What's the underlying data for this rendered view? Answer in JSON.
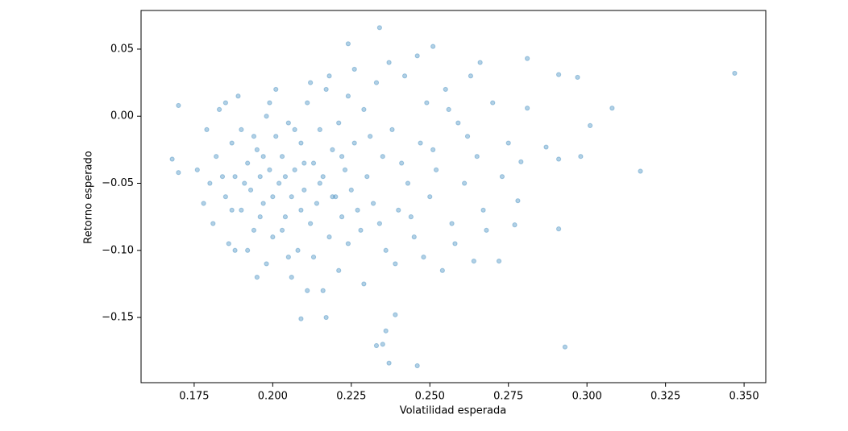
{
  "chart_data": {
    "type": "scatter",
    "x_label": "Volatilidad esperada",
    "y_label": "Retorno esperado",
    "color": "#1f77b4",
    "opacity": 0.35,
    "x": [
      0.347,
      0.317,
      0.308,
      0.301,
      0.298,
      0.297,
      0.293,
      0.291,
      0.291,
      0.291,
      0.287,
      0.281,
      0.281,
      0.279,
      0.278,
      0.277,
      0.275,
      0.234,
      0.246,
      0.237,
      0.233,
      0.235,
      0.236,
      0.239,
      0.168,
      0.17,
      0.17,
      0.209,
      0.217,
      0.224,
      0.251,
      0.272,
      0.264,
      0.18,
      0.182,
      0.185,
      0.187,
      0.188,
      0.19,
      0.19,
      0.192,
      0.193,
      0.194,
      0.195,
      0.196,
      0.197,
      0.198,
      0.199,
      0.2,
      0.201,
      0.202,
      0.203,
      0.204,
      0.205,
      0.206,
      0.207,
      0.208,
      0.209,
      0.21,
      0.211,
      0.212,
      0.213,
      0.214,
      0.215,
      0.216,
      0.217,
      0.218,
      0.219,
      0.22,
      0.221,
      0.222,
      0.223,
      0.224,
      0.225,
      0.226,
      0.228,
      0.229,
      0.23,
      0.232,
      0.233,
      0.235,
      0.236,
      0.238,
      0.24,
      0.242,
      0.243,
      0.245,
      0.247,
      0.249,
      0.25,
      0.252,
      0.255,
      0.257,
      0.259,
      0.261,
      0.263,
      0.265,
      0.267,
      0.27,
      0.273,
      0.176,
      0.178,
      0.179,
      0.181,
      0.183,
      0.184,
      0.186,
      0.187,
      0.189,
      0.191,
      0.192,
      0.194,
      0.196,
      0.197,
      0.198,
      0.2,
      0.201,
      0.203,
      0.204,
      0.206,
      0.207,
      0.209,
      0.21,
      0.212,
      0.213,
      0.215,
      0.216,
      0.218,
      0.219,
      0.221,
      0.222,
      0.224,
      0.226,
      0.227,
      0.229,
      0.231,
      0.234,
      0.237,
      0.239,
      0.241,
      0.244,
      0.246,
      0.248,
      0.251,
      0.254,
      0.256,
      0.258,
      0.262,
      0.266,
      0.268,
      0.195,
      0.199,
      0.205,
      0.211,
      0.188,
      0.185
    ],
    "values": [
      0.032,
      -0.041,
      0.006,
      -0.007,
      -0.03,
      0.029,
      -0.172,
      0.031,
      -0.084,
      -0.032,
      -0.023,
      0.043,
      0.006,
      -0.034,
      -0.063,
      -0.081,
      -0.02,
      0.066,
      -0.186,
      -0.184,
      -0.171,
      -0.17,
      -0.16,
      -0.148,
      -0.032,
      0.008,
      -0.042,
      -0.151,
      -0.15,
      0.054,
      0.052,
      -0.108,
      -0.108,
      -0.05,
      -0.03,
      -0.06,
      -0.02,
      -0.045,
      -0.07,
      -0.01,
      -0.035,
      -0.055,
      -0.085,
      -0.025,
      -0.045,
      -0.065,
      0.0,
      -0.04,
      -0.09,
      -0.015,
      -0.05,
      -0.03,
      -0.075,
      -0.005,
      -0.06,
      -0.04,
      -0.1,
      -0.02,
      -0.055,
      0.01,
      -0.08,
      -0.035,
      -0.065,
      -0.01,
      -0.045,
      0.02,
      -0.09,
      -0.025,
      -0.06,
      -0.005,
      -0.075,
      -0.04,
      0.015,
      -0.055,
      -0.02,
      -0.085,
      0.005,
      -0.045,
      -0.065,
      0.025,
      -0.03,
      -0.1,
      -0.01,
      -0.07,
      0.03,
      -0.05,
      -0.09,
      -0.02,
      0.01,
      -0.06,
      -0.04,
      0.02,
      -0.08,
      -0.005,
      -0.05,
      0.03,
      -0.03,
      -0.07,
      0.01,
      -0.045,
      -0.04,
      -0.065,
      -0.01,
      -0.08,
      0.005,
      -0.045,
      -0.095,
      -0.07,
      0.015,
      -0.05,
      -0.1,
      -0.015,
      -0.075,
      -0.03,
      -0.11,
      -0.06,
      0.02,
      -0.085,
      -0.045,
      -0.12,
      -0.01,
      -0.07,
      -0.035,
      0.025,
      -0.105,
      -0.05,
      -0.13,
      0.03,
      -0.06,
      -0.115,
      -0.03,
      -0.095,
      0.035,
      -0.07,
      -0.125,
      -0.015,
      -0.08,
      0.04,
      -0.11,
      -0.035,
      -0.075,
      0.045,
      -0.105,
      -0.025,
      -0.115,
      0.005,
      -0.095,
      -0.015,
      0.04,
      -0.085,
      -0.12,
      0.01,
      -0.105,
      -0.13,
      -0.1,
      0.01
    ],
    "xlim": [
      0.1581,
      0.3569
    ],
    "ylim": [
      -0.1986,
      0.0788
    ],
    "xticks": [
      0.175,
      {
        "value": 0.2,
        "label": "0.200"
      },
      0.225,
      {
        "value": 0.25,
        "label": "0.250"
      },
      0.275,
      {
        "value": 0.3,
        "label": "0.300"
      },
      0.325,
      {
        "value": 0.35,
        "label": "0.350"
      }
    ],
    "yticks": [
      {
        "value": -0.15,
        "label": "−0.15"
      },
      {
        "value": -0.1,
        "label": "−0.10"
      },
      {
        "value": -0.05,
        "label": "−0.05"
      },
      {
        "value": 0,
        "label": "0.00"
      },
      0.05
    ]
  }
}
